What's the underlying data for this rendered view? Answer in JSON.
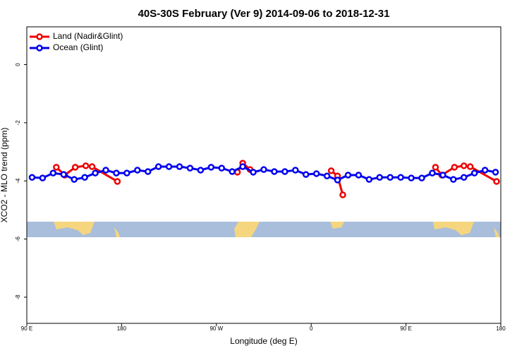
{
  "chart_data": {
    "type": "line",
    "title": "40S-30S February (Ver 9)   2014-09-06 to 2018-12-31",
    "x_label": "Longitude (deg E)",
    "y_label": "XCO2 - MLO trend (ppm)",
    "xlim": [
      90,
      540
    ],
    "ylim": [
      -8.9,
      1.3
    ],
    "xticks": [
      {
        "value": 90,
        "label": "90 E"
      },
      {
        "value": 180,
        "label": "180"
      },
      {
        "value": 270,
        "label": "90 W"
      },
      {
        "value": 360,
        "label": "0"
      },
      {
        "value": 450,
        "label": "90 E"
      },
      {
        "value": 540,
        "label": "180"
      }
    ],
    "yticks": [
      0,
      -2,
      -4,
      -6,
      -8
    ],
    "legend": "top-left",
    "series": [
      {
        "name": "Land (Nadir&Glint)",
        "color": "#ee0000",
        "x": [
          118,
          126,
          136,
          146,
          152,
          176,
          null,
          290,
          295,
          302,
          null,
          379,
          385,
          390,
          null,
          478,
          484,
          496,
          505,
          511,
          536
        ],
        "values": [
          -3.53,
          -3.8,
          -3.53,
          -3.48,
          -3.51,
          -4.02,
          null,
          -3.7,
          -3.39,
          -3.61,
          null,
          -3.65,
          -3.83,
          -4.48,
          null,
          -3.53,
          -3.8,
          -3.53,
          -3.48,
          -3.51,
          -4.02
        ]
      },
      {
        "name": "Ocean (Glint)",
        "color": "#0000ee",
        "x": [
          95,
          105,
          115,
          125,
          135,
          145,
          155,
          165,
          175,
          185,
          195,
          205,
          215,
          225,
          235,
          245,
          255,
          265,
          275,
          285,
          295,
          305,
          315,
          325,
          335,
          345,
          355,
          365,
          375,
          385,
          395,
          405,
          415,
          425,
          435,
          445,
          455,
          465,
          475,
          485,
          495,
          505,
          515,
          525,
          535
        ],
        "values": [
          -3.88,
          -3.9,
          -3.73,
          -3.78,
          -3.95,
          -3.88,
          -3.73,
          -3.63,
          -3.73,
          -3.73,
          -3.63,
          -3.68,
          -3.51,
          -3.51,
          -3.51,
          -3.56,
          -3.63,
          -3.53,
          -3.56,
          -3.68,
          -3.51,
          -3.7,
          -3.61,
          -3.68,
          -3.68,
          -3.63,
          -3.78,
          -3.75,
          -3.83,
          -3.97,
          -3.8,
          -3.8,
          -3.95,
          -3.88,
          -3.88,
          -3.88,
          -3.9,
          -3.9,
          -3.73,
          -3.8,
          -3.95,
          -3.88,
          -3.73,
          -3.63,
          -3.7
        ]
      }
    ]
  }
}
